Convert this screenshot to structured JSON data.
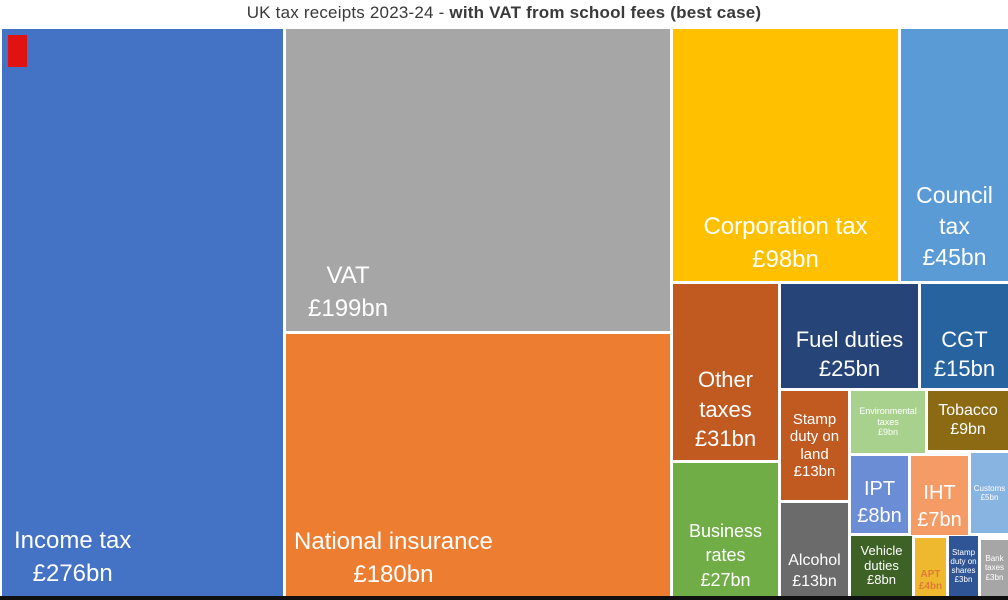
{
  "title": {
    "prefix": "UK tax receipts 2023-24 - ",
    "emphasis": "with VAT from school fees (best case)"
  },
  "chart_data": {
    "type": "treemap",
    "title": "UK tax receipts 2023-24 - with VAT from school fees (best case)",
    "unit": "GBP billions",
    "items": [
      {
        "label": "Income tax",
        "amount": "£276bn",
        "value": 276,
        "color": "#4472c4"
      },
      {
        "label": "VAT",
        "amount": "£199bn",
        "value": 199,
        "color": "#a6a6a6"
      },
      {
        "label": "National insurance",
        "amount": "£180bn",
        "value": 180,
        "color": "#ed7d31"
      },
      {
        "label": "Corporation tax",
        "amount": "£98bn",
        "value": 98,
        "color": "#ffc000"
      },
      {
        "label": "Council tax",
        "amount": "£45bn",
        "value": 45,
        "color": "#5b9bd5"
      },
      {
        "label": "Other taxes",
        "amount": "£31bn",
        "value": 31,
        "color": "#c05a21"
      },
      {
        "label": "Fuel duties",
        "amount": "£25bn",
        "value": 25,
        "color": "#264478"
      },
      {
        "label": "CGT",
        "amount": "£15bn",
        "value": 15,
        "color": "#27649f"
      },
      {
        "label": "Stamp duty on land",
        "amount": "£13bn",
        "value": 13,
        "color": "#c05a21"
      },
      {
        "label": "Environmental taxes",
        "amount": "£9bn",
        "value": 9,
        "color": "#a9d18e"
      },
      {
        "label": "Tobacco",
        "amount": "£9bn",
        "value": 9,
        "color": "#8c6a14"
      },
      {
        "label": "IPT",
        "amount": "£8bn",
        "value": 8,
        "color": "#6a8dd6"
      },
      {
        "label": "IHT",
        "amount": "£7bn",
        "value": 7,
        "color": "#f49b66"
      },
      {
        "label": "Customs",
        "amount": "£5bn",
        "value": 5,
        "color": "#88b4e2"
      },
      {
        "label": "Business rates",
        "amount": "£27bn",
        "value": 27,
        "color": "#70ad47"
      },
      {
        "label": "Alcohol",
        "amount": "£13bn",
        "value": 13,
        "color": "#6b6b6b"
      },
      {
        "label": "Vehicle duties",
        "amount": "£8bn",
        "value": 8,
        "color": "#3e6226"
      },
      {
        "label": "APT",
        "amount": "£4bn",
        "value": 4,
        "color": "#eeb92f"
      },
      {
        "label": "Stamp duty on shares",
        "amount": "£3bn",
        "value": 3,
        "color": "#2f5597"
      },
      {
        "label": "Bank taxes",
        "amount": "£3bn",
        "value": 3,
        "color": "#a6a6a6"
      }
    ],
    "marker": {
      "name": "school-fees VAT marker",
      "color": "#e01212"
    },
    "layout_hints": {
      "legend": "none",
      "label_color": "#ffffff",
      "background": "#ffffff"
    }
  }
}
